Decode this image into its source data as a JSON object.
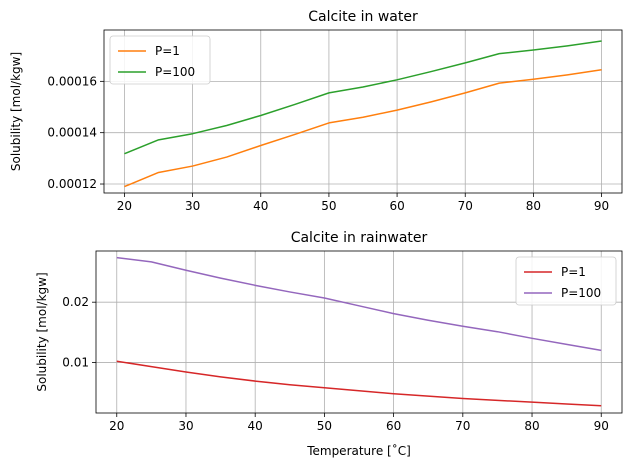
{
  "chart_data": [
    {
      "type": "line",
      "title": "Calcite in water",
      "xlabel": "",
      "ylabel": "Solubility [mol/kgw]",
      "xlim": [
        17.0,
        93.0
      ],
      "ylim": [
        0.0001165,
        0.00018
      ],
      "xticks": [
        20,
        30,
        40,
        50,
        60,
        70,
        80,
        90
      ],
      "xtick_labels": [
        "20",
        "30",
        "40",
        "50",
        "60",
        "70",
        "80",
        "90"
      ],
      "yticks": [
        0.00012,
        0.00014,
        0.00016
      ],
      "ytick_labels": [
        "0.00012",
        "0.00014",
        "0.00016"
      ],
      "grid": true,
      "legend_position": "upper left",
      "series": [
        {
          "name": "P=1",
          "color": "#ff7f0e",
          "x": [
            20,
            25,
            30,
            35,
            40,
            45,
            50,
            55,
            60,
            65,
            70,
            75,
            80,
            85,
            90
          ],
          "y": [
            0.000119,
            0.0001245,
            0.000127,
            0.0001305,
            0.000135,
            0.0001393,
            0.0001438,
            0.000146,
            0.0001488,
            0.000152,
            0.0001555,
            0.0001593,
            0.0001608,
            0.0001625,
            0.0001645
          ]
        },
        {
          "name": "P=100",
          "color": "#2ca02c",
          "x": [
            20,
            25,
            30,
            35,
            40,
            45,
            50,
            55,
            60,
            65,
            70,
            75,
            80,
            85,
            90
          ],
          "y": [
            0.0001318,
            0.0001372,
            0.0001396,
            0.0001428,
            0.0001467,
            0.000151,
            0.0001555,
            0.0001578,
            0.0001606,
            0.0001638,
            0.0001672,
            0.0001708,
            0.0001722,
            0.0001738,
            0.0001757
          ]
        }
      ]
    },
    {
      "type": "line",
      "title": "Calcite in rainwater",
      "xlabel": "Temperature [$^\\circ$C]",
      "xlabel_display": "Temperature [˚C]",
      "ylabel": "Solubility [mol/kgw]",
      "xlim": [
        17.0,
        93.0
      ],
      "ylim": [
        0.0016,
        0.0285
      ],
      "xticks": [
        20,
        30,
        40,
        50,
        60,
        70,
        80,
        90
      ],
      "xtick_labels": [
        "20",
        "30",
        "40",
        "50",
        "60",
        "70",
        "80",
        "90"
      ],
      "yticks": [
        0.01,
        0.02
      ],
      "ytick_labels": [
        "0.01",
        "0.02"
      ],
      "grid": true,
      "legend_position": "upper right",
      "series": [
        {
          "name": "P=1",
          "color": "#d62728",
          "x": [
            20,
            25,
            30,
            35,
            40,
            45,
            50,
            55,
            60,
            65,
            70,
            75,
            80,
            85,
            90
          ],
          "y": [
            0.0102,
            0.0093,
            0.0084,
            0.0076,
            0.0069,
            0.0063,
            0.0058,
            0.0053,
            0.0048,
            0.0044,
            0.004,
            0.0037,
            0.0034,
            0.0031,
            0.0028
          ]
        },
        {
          "name": "P=100",
          "color": "#9467bd",
          "x": [
            20,
            25,
            30,
            35,
            40,
            45,
            50,
            55,
            60,
            65,
            70,
            75,
            80,
            85,
            90
          ],
          "y": [
            0.0274,
            0.0267,
            0.0253,
            0.024,
            0.0228,
            0.0217,
            0.0207,
            0.0194,
            0.0181,
            0.017,
            0.016,
            0.0151,
            0.014,
            0.013,
            0.012
          ]
        }
      ]
    }
  ]
}
